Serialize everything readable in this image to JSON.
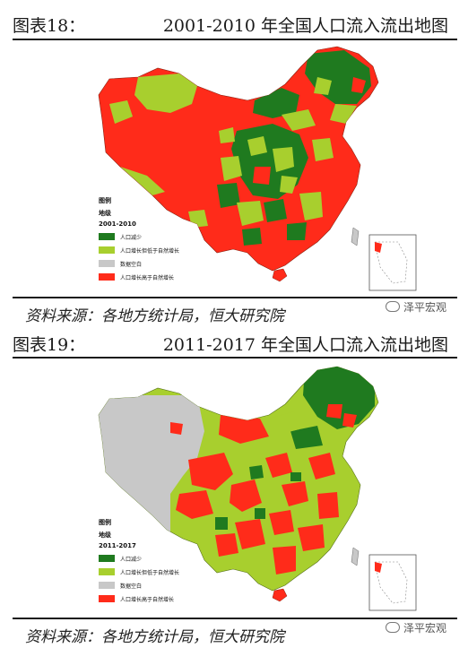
{
  "figures": [
    {
      "number": "图表18：",
      "title": "2001-2010 年全国人口流入流出地图",
      "legend": {
        "heading": "图例",
        "sub_heading": "地级",
        "period": "2001-2010",
        "items": [
          {
            "label": "人口减少",
            "color": "#1f7a1f"
          },
          {
            "label": "人口增长但低于自然增长",
            "color": "#a8cf2e"
          },
          {
            "label": "数据空白",
            "color": "#c8c8c8"
          },
          {
            "label": "人口增长高于自然增长",
            "color": "#ff2b1a"
          }
        ]
      },
      "source": "资料来源：各地方统计局，恒大研究院",
      "watermark": "泽平宏观"
    },
    {
      "number": "图表19：",
      "title": "2011-2017 年全国人口流入流出地图",
      "legend": {
        "heading": "图例",
        "sub_heading": "地级",
        "period": "2011-2017",
        "items": [
          {
            "label": "人口减少",
            "color": "#1f7a1f"
          },
          {
            "label": "人口增长但低于自然增长",
            "color": "#a8cf2e"
          },
          {
            "label": "数据空白",
            "color": "#c8c8c8"
          },
          {
            "label": "人口增长高于自然增长",
            "color": "#ff2b1a"
          }
        ]
      },
      "source": "资料来源：各地方统计局，恒大研究院",
      "watermark": "泽平宏观"
    }
  ]
}
